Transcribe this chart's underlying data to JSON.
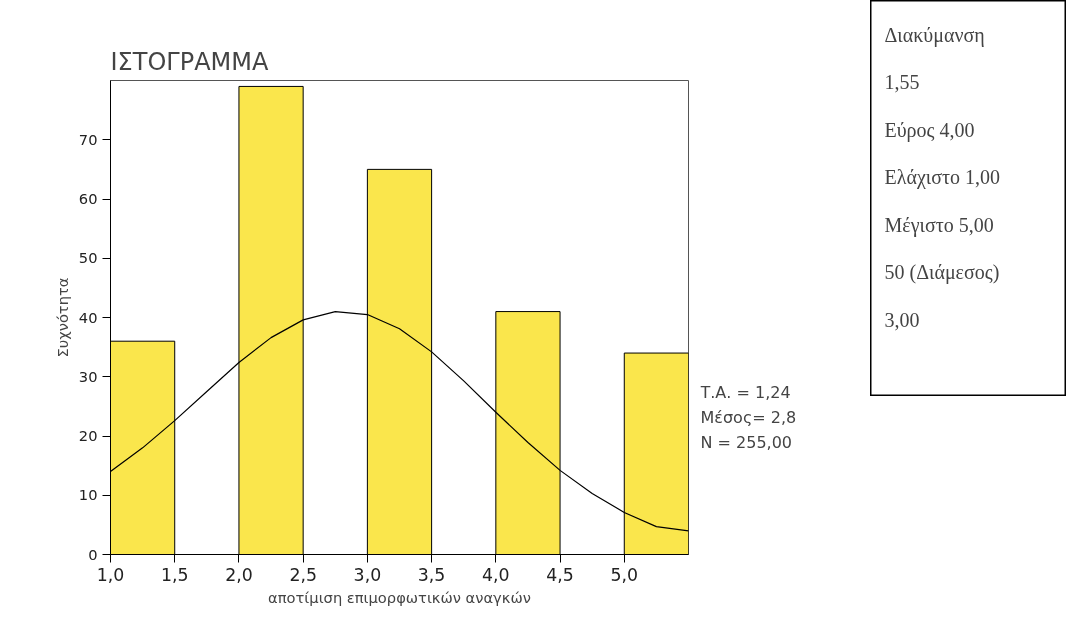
{
  "chart_data": [
    {
      "type": "histogram",
      "title": "ΙΣΤΟΓΡΑΜΜΑ",
      "xlabel": "αποτίμιση επιμορφωτικών αναγκών",
      "ylabel": "Συχνότητα",
      "bins": [
        1.0,
        1.5,
        2.0,
        2.5,
        3.0,
        3.5,
        4.0,
        4.5,
        5.0,
        5.5
      ],
      "values": [
        36,
        0,
        79,
        0,
        65,
        0,
        41,
        0,
        34
      ],
      "color": "#fae64c",
      "series": [
        {
          "type": "line",
          "color": "#000000",
          "x": [
            1.0,
            1.25,
            1.5,
            1.75,
            2.0,
            2.25,
            2.5,
            2.75,
            3.0,
            3.25,
            3.5,
            3.75,
            4.0,
            4.25,
            4.5,
            4.75,
            5.0,
            5.25,
            5.5
          ],
          "values": [
            14,
            18,
            22.6,
            27.5,
            32.4,
            36.6,
            39.6,
            41,
            40.5,
            38.1,
            34.2,
            29.3,
            24,
            18.9,
            14.2,
            10.3,
            7.1,
            4.7,
            4
          ]
        }
      ],
      "xlim": [
        1.0,
        5.5
      ],
      "ylim": [
        0,
        80
      ],
      "xticks": [
        {
          "value": 1.0,
          "label": "1,0"
        },
        {
          "value": 1.5,
          "label": "1,5"
        },
        {
          "value": 2.0,
          "label": "2,0"
        },
        {
          "value": 2.5,
          "label": "2,5"
        },
        {
          "value": 3.0,
          "label": "3,0"
        },
        {
          "value": 3.5,
          "label": "3,5"
        },
        {
          "value": 4.0,
          "label": "4,0"
        },
        {
          "value": 4.5,
          "label": "4,5"
        },
        {
          "value": 5.0,
          "label": "5,0"
        }
      ],
      "yticks": [
        0,
        10,
        20,
        30,
        40,
        50,
        60,
        70
      ],
      "grid": false,
      "annotations": [
        "Τ.Α. = 1,24",
        "Μέσος= 2,8",
        "Ν = 255,00"
      ]
    },
    {
      "type": "other",
      "annotations": [
        "Διακύμανση",
        "1,55",
        "Εύρος   4,00",
        "Ελάχιστο 1,00",
        "Μέγιστο   5,00",
        "50  (Διάμεσος)",
        "3,00"
      ]
    }
  ]
}
